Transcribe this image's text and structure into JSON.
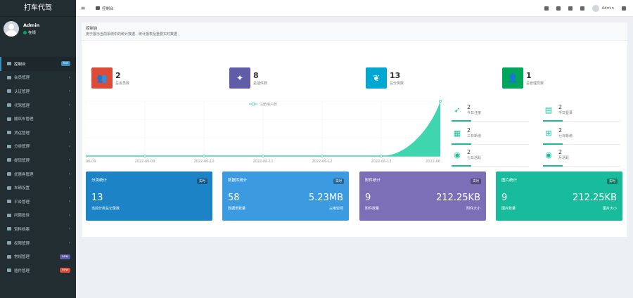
{
  "app": {
    "title": "打车代驾"
  },
  "user": {
    "name": "Admin",
    "status": "在线"
  },
  "sidebar": {
    "items": [
      {
        "label": "控制台",
        "badge": "hot",
        "badge_color": "blue"
      },
      {
        "label": "会员管理"
      },
      {
        "label": "认证管理"
      },
      {
        "label": "代驾管理"
      },
      {
        "label": "顺风车管理"
      },
      {
        "label": "货运管理"
      },
      {
        "label": "分类管理"
      },
      {
        "label": "提现管理"
      },
      {
        "label": "优惠券管理"
      },
      {
        "label": "车辆设置"
      },
      {
        "label": "平台管理"
      },
      {
        "label": "问题投诉"
      },
      {
        "label": "资料档案"
      },
      {
        "label": "权限管理"
      },
      {
        "label": "常规管理",
        "badge": "new",
        "badge_color": "purple"
      },
      {
        "label": "插件管理",
        "badge": "new",
        "badge_color": "red"
      }
    ]
  },
  "header": {
    "tab": "控制台",
    "admin": "Admin"
  },
  "page": {
    "title": "控制台",
    "desc": "用于展示当前系统中的统计数据、统计报表及重要实时数据"
  },
  "stats": [
    {
      "value": "2",
      "label": "总会员数",
      "color": "#dd4b39",
      "icon": "users-icon"
    },
    {
      "value": "8",
      "label": "总插件数",
      "color": "#605ca8",
      "icon": "magic-icon"
    },
    {
      "value": "13",
      "label": "总分类数",
      "color": "#00a7d0",
      "icon": "leaf-icon"
    },
    {
      "value": "1",
      "label": "总管理员数",
      "color": "#00a65a",
      "icon": "user-icon"
    }
  ],
  "chart_data": {
    "type": "area",
    "legend": "注册用户数",
    "categories": [
      "06-09",
      "2022-06-09",
      "2022-06-10",
      "2022-06-11",
      "2022-06-12",
      "2022-06-13",
      "2022-06"
    ],
    "values": [
      0,
      0,
      0,
      0,
      0,
      0,
      2
    ],
    "ylim": [
      0,
      2
    ]
  },
  "mini_stats": [
    {
      "value": "2",
      "label": "今日注册",
      "icon": "rocket-icon"
    },
    {
      "value": "2",
      "label": "今日登录",
      "icon": "vcard-icon"
    },
    {
      "value": "2",
      "label": "三日新增",
      "icon": "calendar-icon"
    },
    {
      "value": "2",
      "label": "七日新增",
      "icon": "calendar-plus-icon"
    },
    {
      "value": "2",
      "label": "七日活跃",
      "icon": "user-circle-icon"
    },
    {
      "value": "2",
      "label": "月活跃",
      "icon": "user-circle-icon"
    }
  ],
  "panels": [
    {
      "title": "分类统计",
      "tag": "实时",
      "left_value": "13",
      "right_value": "",
      "left_sub": "当前分类总记录数",
      "right_sub": "",
      "color": "#1c84c6"
    },
    {
      "title": "数据库统计",
      "tag": "实时",
      "left_value": "58",
      "right_value": "5.23MB",
      "left_sub": "数据表数量",
      "right_sub": "占用空间",
      "color": "#3c9be0"
    },
    {
      "title": "附件统计",
      "tag": "实时",
      "left_value": "9",
      "right_value": "212.25KB",
      "left_sub": "附件数量",
      "right_sub": "附件大小",
      "color": "#7c6fb8"
    },
    {
      "title": "图片统计",
      "tag": "实时",
      "left_value": "9",
      "right_value": "212.25KB",
      "left_sub": "图片数量",
      "right_sub": "图片大小",
      "color": "#18bc9c"
    }
  ]
}
